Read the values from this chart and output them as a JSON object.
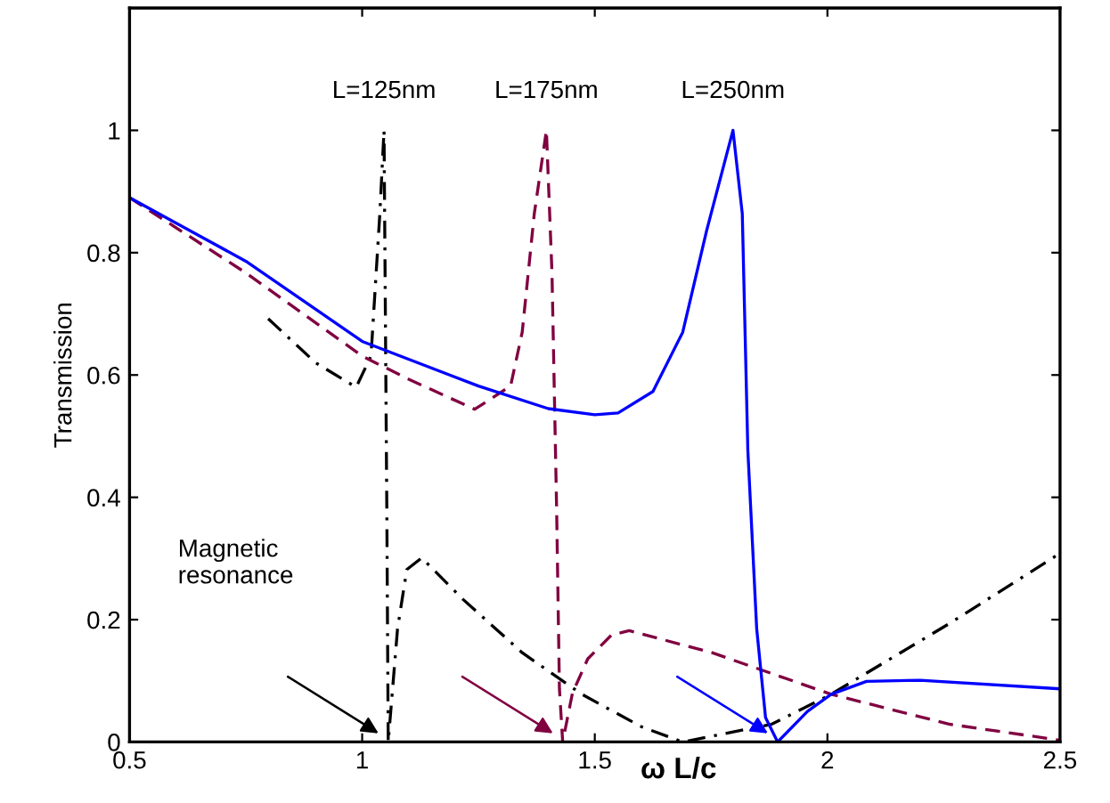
{
  "chart_data": {
    "type": "line",
    "xlabel": "ω L/c",
    "ylabel": "Transmission",
    "xlim": [
      0.5,
      2.5
    ],
    "ylim": [
      0,
      1.2
    ],
    "xticks": [
      0.5,
      1,
      1.5,
      2,
      2.5
    ],
    "yticks": [
      0,
      0.2,
      0.4,
      0.6,
      0.8,
      1
    ],
    "grid": false,
    "legend": false,
    "marker": "none",
    "annotations": [
      "Magnetic\nresonance"
    ],
    "series": [
      {
        "name": "L=125nm",
        "color": "#000000",
        "line_style": "dashdot",
        "x": [
          0.798,
          0.9,
          0.987,
          1.019,
          1.038,
          1.047,
          1.053,
          1.056,
          1.076,
          1.096,
          1.128,
          1.217,
          1.344,
          1.472,
          1.6,
          1.689,
          1.88,
          2.008,
          2.263,
          2.499
        ],
        "values": [
          0.692,
          0.62,
          0.58,
          0.631,
          0.864,
          1.0,
          0.379,
          0,
          0.185,
          0.282,
          0.301,
          0.233,
          0.146,
          0.078,
          0.025,
          0,
          0.029,
          0.078,
          0.194,
          0.308
        ]
      },
      {
        "name": "L=175nm",
        "color": "#800040",
        "line_style": "dashed",
        "x": [
          0.5,
          0.75,
          1.0,
          1.1,
          1.242,
          1.319,
          1.344,
          1.37,
          1.396,
          1.408,
          1.418,
          1.424,
          1.431,
          1.452,
          1.485,
          1.536,
          1.574,
          1.752,
          2.008,
          2.263,
          2.499
        ],
        "values": [
          0.89,
          0.767,
          0.631,
          0.593,
          0.544,
          0.582,
          0.67,
          0.864,
          1.0,
          0.767,
          0.379,
          0.087,
          0,
          0.08,
          0.136,
          0.175,
          0.182,
          0.146,
          0.078,
          0.029,
          0.003
        ]
      },
      {
        "name": "L=250nm",
        "color": "#0000ff",
        "line_style": "solid",
        "x": [
          0.5,
          0.75,
          1.0,
          1.25,
          1.4,
          1.5,
          1.55,
          1.625,
          1.689,
          1.74,
          1.797,
          1.817,
          1.829,
          1.848,
          1.867,
          1.893,
          1.957,
          2.008,
          2.084,
          2.199,
          2.499
        ],
        "values": [
          0.89,
          0.786,
          0.655,
          0.582,
          0.545,
          0.535,
          0.538,
          0.573,
          0.67,
          0.835,
          1.0,
          0.864,
          0.476,
          0.185,
          0.04,
          0,
          0.05,
          0.078,
          0.099,
          0.101,
          0.087
        ]
      }
    ]
  }
}
